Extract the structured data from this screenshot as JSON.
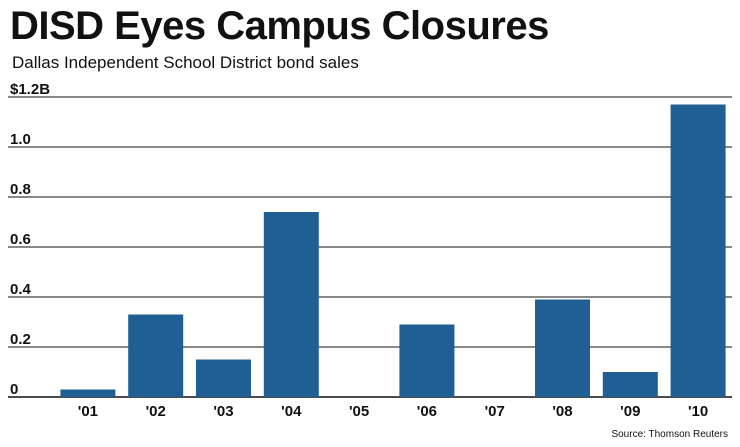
{
  "chart_data": {
    "type": "bar",
    "title": "DISD Eyes Campus Closures",
    "subtitle": "Dallas Independent School District bond sales",
    "source": "Source: Thomson Reuters",
    "categories": [
      "'01",
      "'02",
      "'03",
      "'04",
      "'05",
      "'06",
      "'07",
      "'08",
      "'09",
      "'10"
    ],
    "values": [
      0.03,
      0.33,
      0.15,
      0.74,
      0,
      0.29,
      0,
      0.39,
      0.1,
      1.17
    ],
    "ylim": [
      0,
      1.2
    ],
    "yticks": [
      {
        "value": 0,
        "label": "0"
      },
      {
        "value": 0.2,
        "label": "0.2"
      },
      {
        "value": 0.4,
        "label": "0.4"
      },
      {
        "value": 0.6,
        "label": "0.6"
      },
      {
        "value": 0.8,
        "label": "0.8"
      },
      {
        "value": 1.0,
        "label": "1.0"
      },
      {
        "value": 1.2,
        "label": "$1.2B"
      }
    ],
    "grid": true,
    "bar_color": "#1f5f93",
    "grid_color": "#111111"
  }
}
